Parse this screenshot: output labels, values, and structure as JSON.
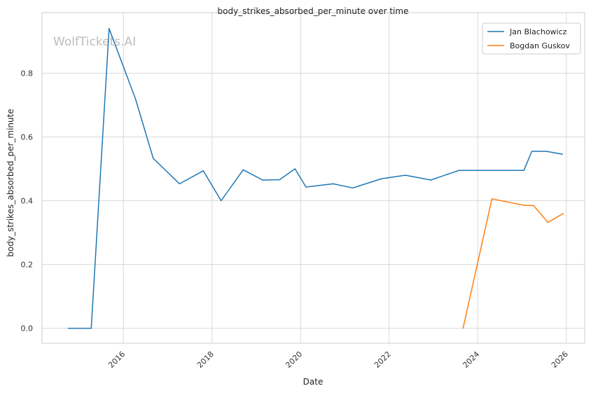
{
  "chart_data": {
    "type": "line",
    "title": "body_strikes_absorbed_per_minute over time",
    "xlabel": "Date",
    "ylabel": "body_strikes_absorbed_per_minute",
    "watermark": "WolfTickets.AI",
    "xlim": [
      "2014-03-01",
      "2026-06-01"
    ],
    "ylim": [
      -0.047,
      0.99
    ],
    "x_ticks": [
      "2016",
      "2018",
      "2020",
      "2022",
      "2024",
      "2026"
    ],
    "y_ticks": [
      "0.0",
      "0.2",
      "0.4",
      "0.6",
      "0.8"
    ],
    "grid": true,
    "legend_position": "top-right",
    "series": [
      {
        "name": "Jan Blachowicz",
        "color": "#1f77b4",
        "points": [
          {
            "x": "2014-10-04",
            "y": 0.0
          },
          {
            "x": "2015-04-11",
            "y": 0.0
          },
          {
            "x": "2015-09-05",
            "y": 0.94
          },
          {
            "x": "2016-04-09",
            "y": 0.72
          },
          {
            "x": "2016-09-03",
            "y": 0.533
          },
          {
            "x": "2017-04-08",
            "y": 0.453
          },
          {
            "x": "2017-10-21",
            "y": 0.494
          },
          {
            "x": "2018-03-17",
            "y": 0.4
          },
          {
            "x": "2018-09-15",
            "y": 0.497
          },
          {
            "x": "2019-02-23",
            "y": 0.465
          },
          {
            "x": "2019-07-13",
            "y": 0.466
          },
          {
            "x": "2019-11-16",
            "y": 0.5
          },
          {
            "x": "2020-02-15",
            "y": 0.443
          },
          {
            "x": "2020-09-26",
            "y": 0.453
          },
          {
            "x": "2021-03-06",
            "y": 0.44
          },
          {
            "x": "2021-10-30",
            "y": 0.469
          },
          {
            "x": "2022-05-14",
            "y": 0.48
          },
          {
            "x": "2022-12-10",
            "y": 0.465
          },
          {
            "x": "2023-07-29",
            "y": 0.495
          },
          {
            "x": "2024-06-01",
            "y": 0.495
          },
          {
            "x": "2025-01-15",
            "y": 0.495
          },
          {
            "x": "2025-03-22",
            "y": 0.555
          },
          {
            "x": "2025-07-19",
            "y": 0.555
          },
          {
            "x": "2025-11-29",
            "y": 0.546
          }
        ]
      },
      {
        "name": "Bogdan Guskov",
        "color": "#ff7f0e",
        "points": [
          {
            "x": "2023-09-02",
            "y": 0.0
          },
          {
            "x": "2024-04-27",
            "y": 0.406
          },
          {
            "x": "2025-01-25",
            "y": 0.385
          },
          {
            "x": "2025-04-05",
            "y": 0.385
          },
          {
            "x": "2025-08-02",
            "y": 0.332
          },
          {
            "x": "2025-12-06",
            "y": 0.36
          }
        ]
      }
    ]
  }
}
